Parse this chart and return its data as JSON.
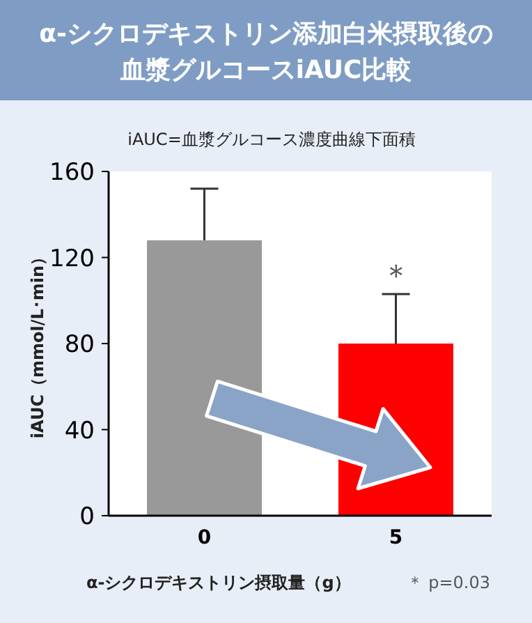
{
  "chart_data": {
    "type": "bar",
    "title": "α-シクロデキストリン添加白米摂取後の血漿グルコースiAUC比較",
    "subtitle": "iAUC=血漿グルコース濃度曲線下面積",
    "xlabel": "α-シクロデキストリン摂取量（g）",
    "ylabel": "iAUC（mmol/L･min）",
    "categories": [
      "0",
      "5"
    ],
    "values": [
      128,
      80
    ],
    "colors": [
      "#999999",
      "#ff0000"
    ],
    "errors": [
      [
        128,
        152
      ],
      [
        80,
        103
      ]
    ],
    "ylim": [
      0,
      160
    ],
    "yticks": [
      0,
      40,
      80,
      120,
      160
    ],
    "grid": false,
    "annotations": [
      "＊",
      "＊ p=0.03"
    ]
  }
}
